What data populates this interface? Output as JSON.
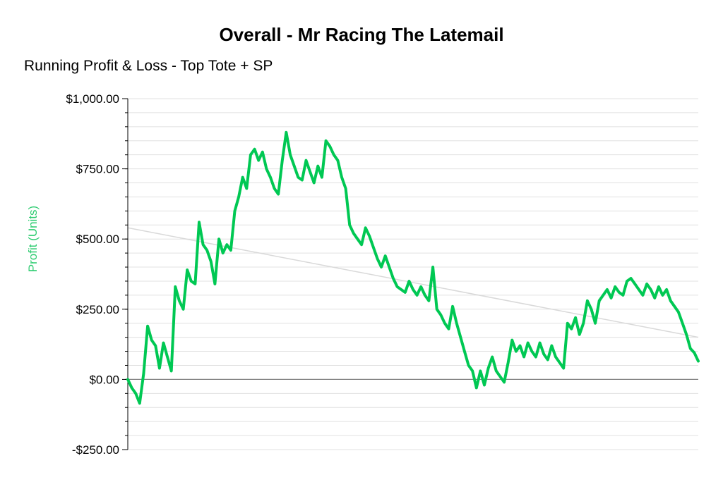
{
  "title": "Overall - Mr Racing The Latemail",
  "subtitle": "Running Profit & Loss - Top Tote + SP",
  "colors": {
    "series": "#00c853",
    "ylabel": "#2ecc71",
    "trend": "#d9d9d9",
    "zero_line": "#808080",
    "grid": "#e0e0e0"
  },
  "chart_data": {
    "type": "line",
    "title": "Overall - Mr Racing The Latemail",
    "subtitle": "Running Profit & Loss - Top Tote + SP",
    "xlabel": "",
    "ylabel": "Profit (Units)",
    "ylim": [
      -250,
      1000
    ],
    "yticks": [
      -250,
      0,
      250,
      500,
      750,
      1000
    ],
    "ytick_labels": [
      "-$250.00",
      "$0.00",
      "$250.00",
      "$500.00",
      "$750.00",
      "$1,000.00"
    ],
    "grid": true,
    "trend_line": {
      "start": 540,
      "end": 150
    },
    "series": [
      {
        "values": [
          0,
          -30,
          -50,
          -85,
          20,
          190,
          140,
          120,
          40,
          130,
          80,
          30,
          330,
          280,
          250,
          390,
          350,
          340,
          560,
          480,
          460,
          420,
          340,
          500,
          450,
          480,
          460,
          600,
          650,
          720,
          680,
          800,
          820,
          780,
          810,
          750,
          720,
          680,
          660,
          780,
          880,
          800,
          760,
          720,
          710,
          780,
          740,
          700,
          760,
          720,
          850,
          830,
          800,
          780,
          720,
          680,
          550,
          520,
          500,
          480,
          540,
          510,
          470,
          430,
          400,
          440,
          400,
          360,
          330,
          320,
          310,
          350,
          320,
          300,
          330,
          300,
          280,
          400,
          250,
          230,
          200,
          180,
          260,
          200,
          150,
          100,
          50,
          30,
          -30,
          30,
          -20,
          40,
          80,
          30,
          10,
          -10,
          60,
          140,
          100,
          120,
          80,
          130,
          100,
          80,
          130,
          90,
          70,
          120,
          80,
          60,
          40,
          200,
          180,
          220,
          160,
          200,
          280,
          250,
          200,
          280,
          300,
          320,
          290,
          330,
          310,
          300,
          350,
          360,
          340,
          320,
          300,
          340,
          320,
          290,
          330,
          300,
          320,
          280,
          260,
          240,
          200,
          160,
          110,
          95,
          65
        ]
      }
    ]
  }
}
